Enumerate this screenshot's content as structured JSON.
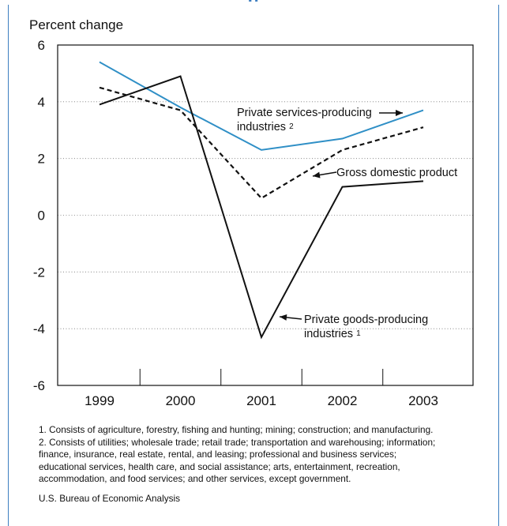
{
  "chart_data": {
    "type": "line",
    "ylabel": "Percent change",
    "x": [
      "1999",
      "2000",
      "2001",
      "2002",
      "2003"
    ],
    "ylim": [
      -6,
      6
    ],
    "yticks": [
      "6",
      "4",
      "2",
      "0",
      "-2",
      "-4",
      "-6"
    ],
    "grid": "dotted horizontal",
    "series": [
      {
        "name": "Private services-producing industries",
        "note_marker": "2",
        "color": "#2f8fc6",
        "style": "solid",
        "values": [
          5.4,
          3.8,
          2.3,
          2.7,
          3.7
        ]
      },
      {
        "name": "Gross domestic product",
        "color": "#111111",
        "style": "dashed",
        "values": [
          4.5,
          3.7,
          0.6,
          2.3,
          3.1
        ]
      },
      {
        "name": "Private goods-producing industries",
        "note_marker": "1",
        "color": "#111111",
        "style": "solid",
        "values": [
          3.9,
          4.9,
          -4.3,
          1.0,
          1.2
        ]
      }
    ],
    "annotations": [
      {
        "lines": [
          "Private services-producing",
          "industries"
        ],
        "marker": "2"
      },
      {
        "lines": [
          "Gross domestic product"
        ]
      },
      {
        "lines": [
          "Private goods-producing",
          "industries"
        ],
        "marker": "1"
      }
    ]
  },
  "notes": [
    "1. Consists of agriculture, forestry, fishing and hunting; mining; construction; and manufacturing.",
    "2. Consists of utilities; wholesale trade; retail trade; transportation and warehousing; information;",
    "finance, insurance, real estate, rental, and leasing; professional and business services;",
    "educational services, health care, and social assistance; arts, entertainment, recreation,",
    "accommodation, and food services; and other services, except government."
  ],
  "source": "U.S. Bureau of Economic Analysis",
  "header_fragment": "g"
}
